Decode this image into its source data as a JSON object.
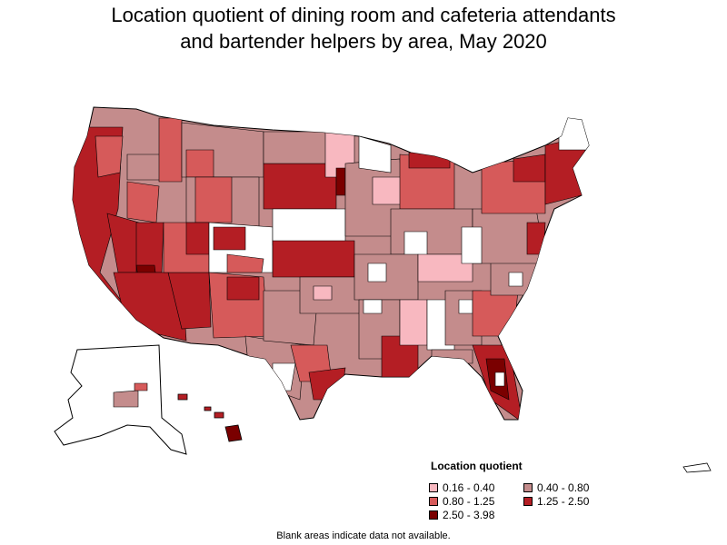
{
  "title": {
    "line1": "Location quotient of dining room and cafeteria attendants",
    "line2": "and bartender helpers by area, May 2020"
  },
  "legend": {
    "title": "Location quotient",
    "items": [
      {
        "label": "0.16 - 0.40",
        "color": "#f8b8c0"
      },
      {
        "label": "0.40 - 0.80",
        "color": "#c48c8c"
      },
      {
        "label": "0.80 - 1.25",
        "color": "#d65a5a"
      },
      {
        "label": "1.25 - 2.50",
        "color": "#b41e24"
      },
      {
        "label": "2.50 - 3.98",
        "color": "#7a0000"
      }
    ]
  },
  "footnote": "Blank areas indicate data not available."
}
